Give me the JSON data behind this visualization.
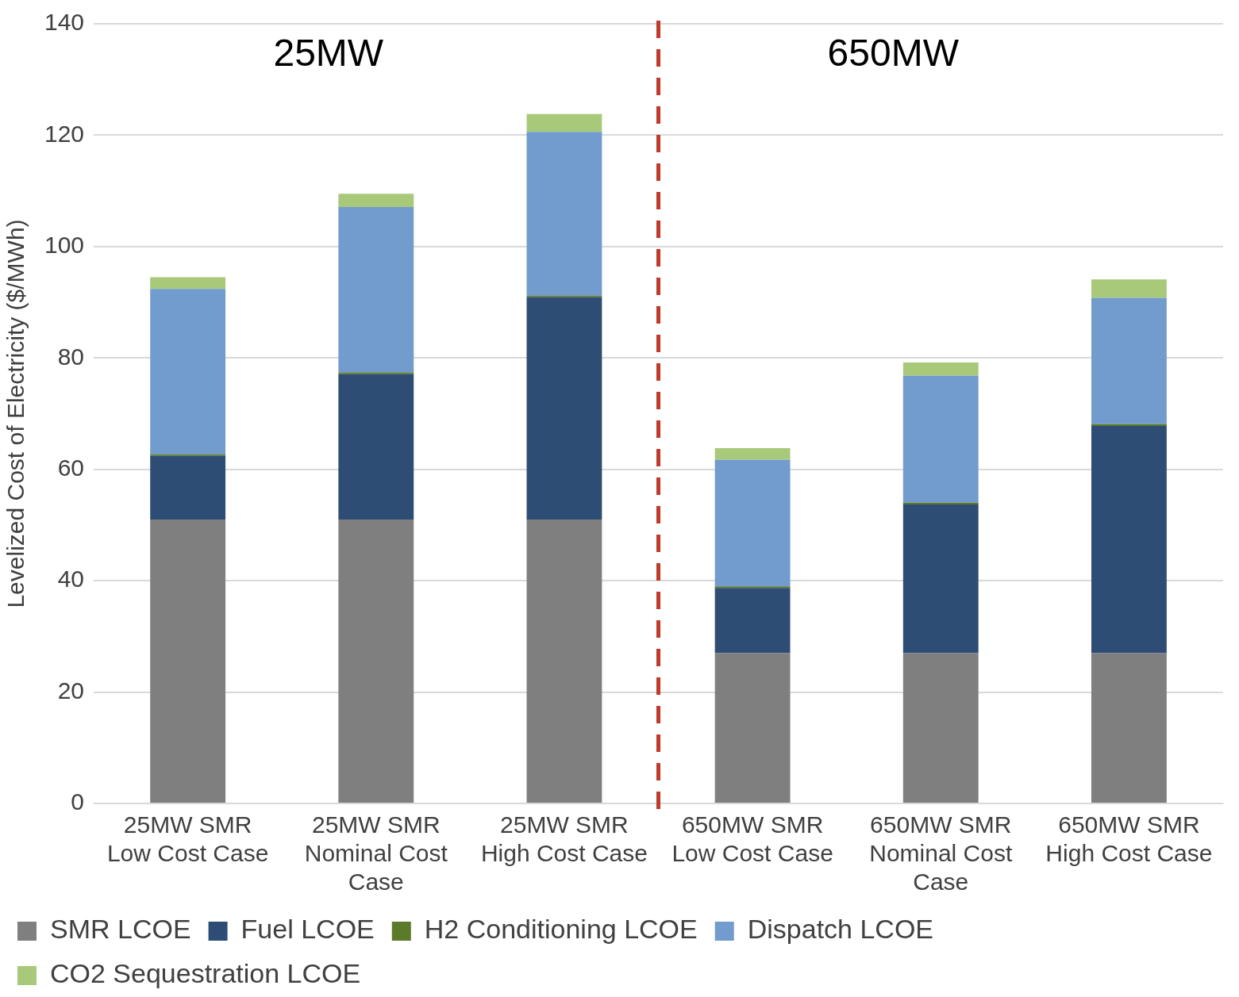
{
  "chart_data": {
    "type": "bar",
    "stacked": true,
    "ylabel": "Levelized Cost of Electricity ($/MWh)",
    "categories": [
      "25MW SMR Low Cost Case",
      "25MW SMR Nominal Cost Case",
      "25MW SMR High Cost Case",
      "650MW SMR Low Cost Case",
      "650MW SMR Nominal Cost Case",
      "650MW SMR High Cost Case"
    ],
    "series": [
      {
        "name": "SMR LCOE",
        "color": "#7f7f7f",
        "values": [
          51,
          51,
          51,
          27,
          27,
          27
        ]
      },
      {
        "name": "Fuel LCOE",
        "color": "#2e4d75",
        "values": [
          11.4,
          26.1,
          39.9,
          11.7,
          26.7,
          40.8
        ]
      },
      {
        "name": "H2 Conditioning LCOE",
        "color": "#5b7a2a",
        "values": [
          0.3,
          0.3,
          0.3,
          0.3,
          0.3,
          0.3
        ]
      },
      {
        "name": "Dispatch LCOE",
        "color": "#729bce",
        "values": [
          29.7,
          29.7,
          29.4,
          22.7,
          22.8,
          22.7
        ]
      },
      {
        "name": "CO2 Sequestration LCOE",
        "color": "#a9c97a",
        "values": [
          2.1,
          2.4,
          3.2,
          2.1,
          2.4,
          3.3
        ]
      }
    ],
    "ylim": [
      0,
      140
    ],
    "yticks": [
      0,
      20,
      40,
      60,
      80,
      100,
      120,
      140
    ],
    "grid": "y",
    "legend": "bottom",
    "ref_lines": [
      {
        "axis": "x",
        "value": "650MW SMR Low Cost Case",
        "color": "#c0392b",
        "line_style": "dashed"
      }
    ],
    "annotations": [
      "25MW",
      "650MW"
    ]
  }
}
